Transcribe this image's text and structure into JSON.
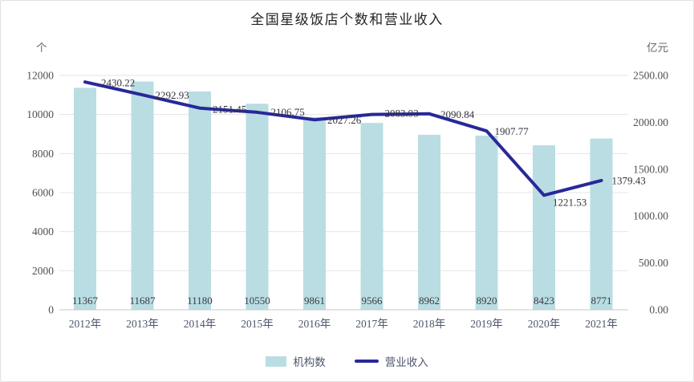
{
  "card": {
    "title": "全国星级饭店个数和营业收入"
  },
  "axes": {
    "left_unit": "个",
    "right_unit": "亿元"
  },
  "legend": [
    {
      "label": "机构数",
      "type": "bar"
    },
    {
      "label": "营业收入",
      "type": "line"
    }
  ],
  "colors": {
    "bar_fill": "#b9dde2",
    "line_stroke": "#28289a",
    "grid": "#e4e4e4",
    "axis_line": "#c9c9c9",
    "tick_text": "#4f4f53",
    "year_text": "#4c566b",
    "bar_label_text": "#3a3a44",
    "line_label_text": "#33333d"
  },
  "chart_data": {
    "type": "bar",
    "subtype": "combo-bar-line",
    "title": "全国星级饭店个数和营业收入",
    "categories": [
      "2012年",
      "2013年",
      "2014年",
      "2015年",
      "2016年",
      "2017年",
      "2018年",
      "2019年",
      "2020年",
      "2021年"
    ],
    "series": [
      {
        "name": "机构数",
        "type": "bar",
        "axis": "left",
        "unit": "个",
        "values": [
          11367,
          11687,
          11180,
          10550,
          9861,
          9566,
          8962,
          8920,
          8423,
          8771
        ]
      },
      {
        "name": "营业收入",
        "type": "line",
        "axis": "right",
        "unit": "亿元",
        "values": [
          2430.22,
          2292.93,
          2151.45,
          2106.75,
          2027.26,
          2083.93,
          2090.84,
          1907.77,
          1221.53,
          1379.43
        ]
      }
    ],
    "left_axis": {
      "unit": "个",
      "min": 0,
      "max": 12000,
      "tick_labels": [
        "0",
        "2000",
        "4000",
        "6000",
        "8000",
        "10000",
        "12000"
      ]
    },
    "right_axis": {
      "unit": "亿元",
      "min": 0,
      "max": 2500,
      "tick_labels": [
        "0.00",
        "500.00",
        "1000.00",
        "1500.00",
        "2000.00",
        "2500.00"
      ]
    },
    "grid": true,
    "legend_position": "bottom"
  }
}
